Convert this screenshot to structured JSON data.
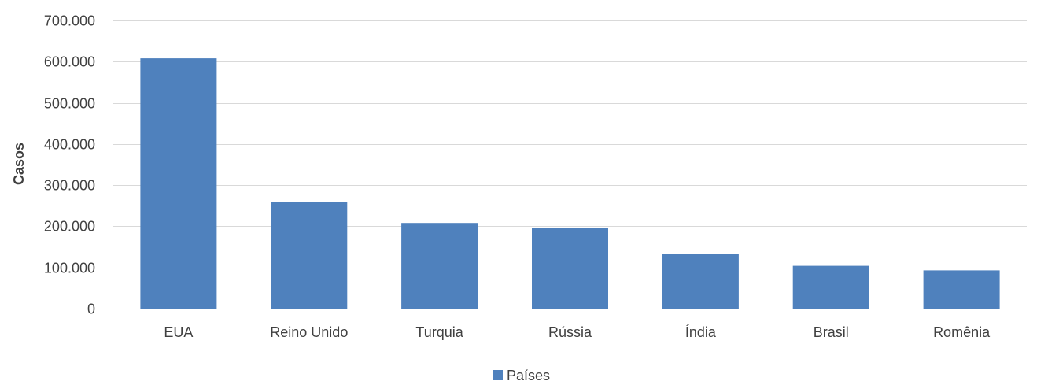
{
  "chart_data": {
    "type": "bar",
    "categories": [
      "EUA",
      "Reino Unido",
      "Turquia",
      "Rússia",
      "Índia",
      "Brasil",
      "Romênia"
    ],
    "series": [
      {
        "name": "Países",
        "values": [
          608000,
          259000,
          208000,
          196000,
          133000,
          104000,
          93000
        ],
        "color": "#4f81bd"
      }
    ],
    "ylabel": "Casos",
    "ylim": [
      0,
      700000
    ],
    "yticks": [
      0,
      100000,
      200000,
      300000,
      400000,
      500000,
      600000,
      700000
    ],
    "ytick_labels": [
      "0",
      "100.000",
      "200.000",
      "300.000",
      "400.000",
      "500.000",
      "600.000",
      "700.000"
    ],
    "grid": true,
    "grid_color": "#d9d9d9",
    "legend_position": "bottom"
  }
}
